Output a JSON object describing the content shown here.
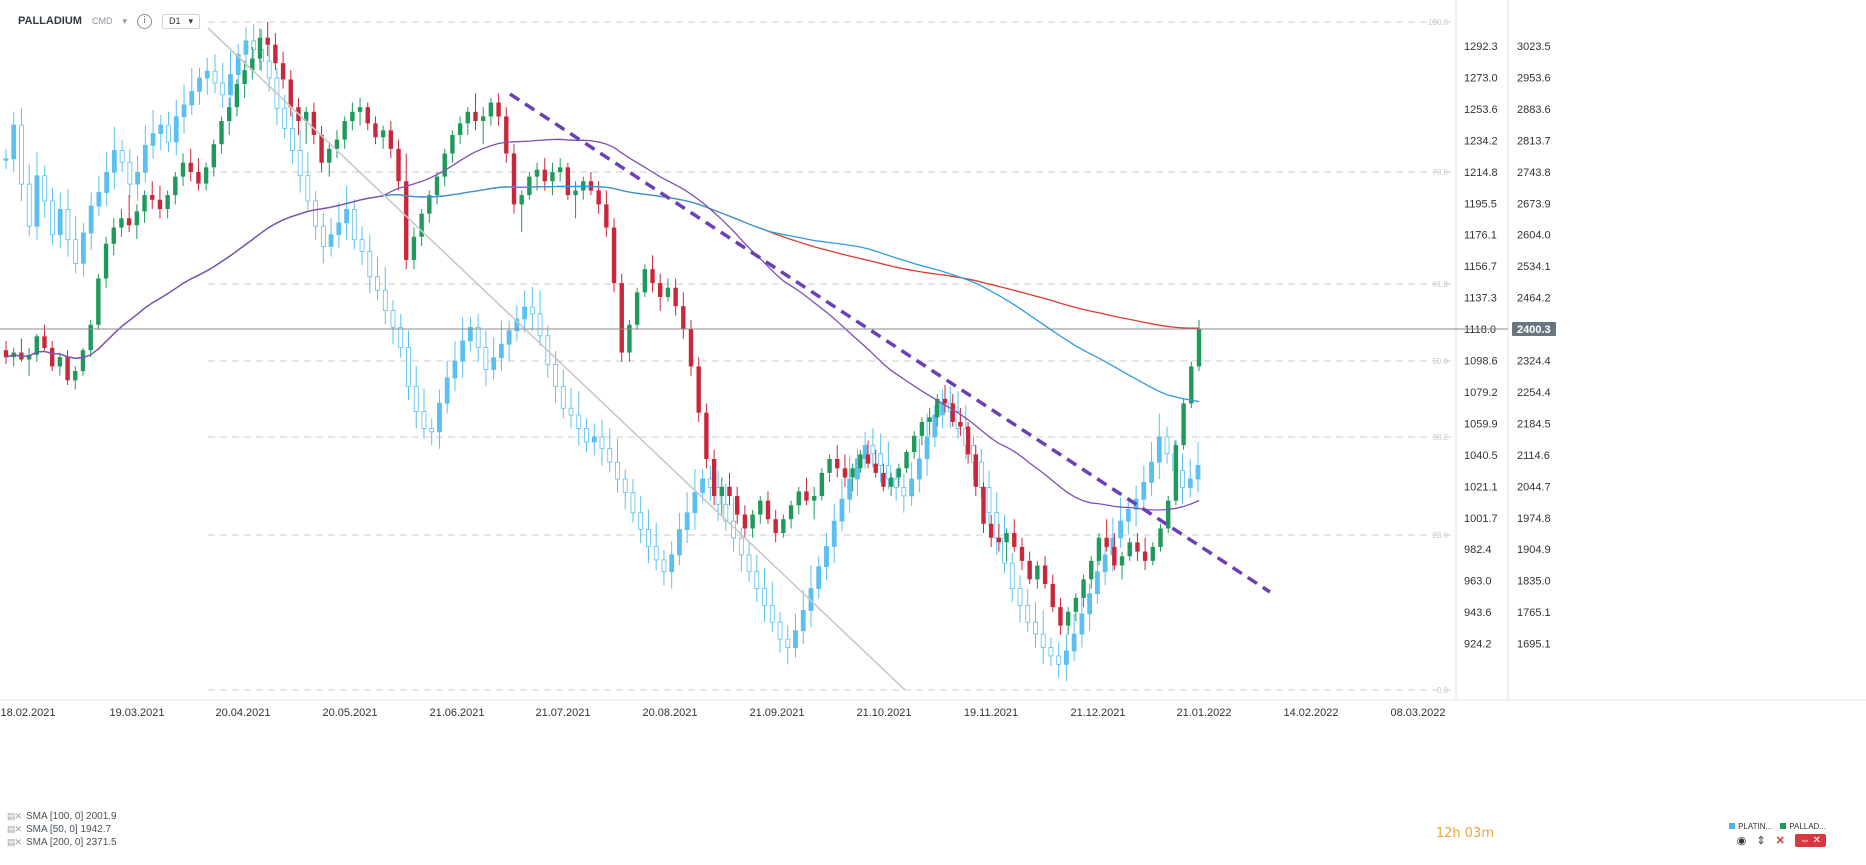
{
  "toolbar": {
    "symbol": "PALLADIUM",
    "source": "CMD",
    "info_icon": "info-icon",
    "interval": "D1"
  },
  "timer": {
    "hours": "12",
    "h_unit": "h",
    "minutes": "03",
    "m_unit": "m"
  },
  "symbols_legend": [
    {
      "label": "PLATIN...",
      "color": "#4fb3e8"
    },
    {
      "label": "PALLAD...",
      "color": "#1f9a5a"
    }
  ],
  "indicators": [
    {
      "label": "SMA [100, 0] 2001.9",
      "color": "#2f9be0"
    },
    {
      "label": "SMA [50, 0] 1942.7",
      "color": "#7e4fb8"
    },
    {
      "label": "SMA [200, 0] 2371.5",
      "color": "#e03a2e"
    }
  ],
  "colors": {
    "up": "#1f9a5a",
    "down": "#c8283a",
    "platinum": "#5bc0ef",
    "sma50": "#7e4fb8",
    "sma100": "#2f9be0",
    "sma200": "#e03a2e",
    "trendline": "#6b3fb6",
    "grid": "#d8d8d8",
    "current_line": "#888888"
  },
  "chart_data": {
    "type": "line",
    "title": "PALLADIUM",
    "xlabel": "",
    "ylabel": "",
    "x_labels": [
      "18.02.2021",
      "19.03.2021",
      "20.04.2021",
      "20.05.2021",
      "21.06.2021",
      "21.07.2021",
      "20.08.2021",
      "21.09.2021",
      "21.10.2021",
      "19.11.2021",
      "21.12.2021",
      "21.01.2022",
      "14.02.2022",
      "08.03.2022"
    ],
    "y_left_ticks": [
      "1292.3",
      "1273.0",
      "1253.6",
      "1234.2",
      "1214.8",
      "1195.5",
      "1176.1",
      "1156.7",
      "1137.3",
      "1118.0",
      "1098.6",
      "1079.2",
      "1059.9",
      "1040.5",
      "1021.1",
      "1001.7",
      "982.4",
      "963.0",
      "943.6",
      "924.2"
    ],
    "y_left_range": [
      904.8,
      1301.2
    ],
    "y_right_ticks": [
      "3023.5",
      "2953.6",
      "2883.6",
      "2813.7",
      "2743.8",
      "2673.9",
      "2604.0",
      "2534.1",
      "2464.2",
      "2400.3",
      "2324.4",
      "2254.4",
      "2184.5",
      "2114.6",
      "2044.7",
      "1974.8",
      "1904.9",
      "1835.0",
      "1765.1",
      "1695.1"
    ],
    "current_price": "2400.3",
    "fibonacci_levels": [
      "100.0",
      "78.6",
      "61.8",
      "50.0",
      "38.2",
      "23.6",
      "0.0"
    ],
    "fibonacci_range": [
      1621.0,
      3064.0
    ],
    "series": [
      {
        "name": "PLATIN...",
        "role": "platinum-right-axis"
      },
      {
        "name": "PALLAD...",
        "role": "palladium-left-axis"
      },
      {
        "name": "SMA [100, 0] 2001.9"
      },
      {
        "name": "SMA [50, 0] 1942.7"
      },
      {
        "name": "SMA [200, 0] 2371.5"
      }
    ],
    "palladium_candles": [
      [
        2355,
        2375,
        2325,
        2340
      ],
      [
        2340,
        2360,
        2320,
        2350
      ],
      [
        2350,
        2380,
        2330,
        2335
      ],
      [
        2335,
        2360,
        2300,
        2345
      ],
      [
        2345,
        2390,
        2330,
        2385
      ],
      [
        2385,
        2410,
        2355,
        2360
      ],
      [
        2360,
        2375,
        2310,
        2320
      ],
      [
        2320,
        2350,
        2300,
        2340
      ],
      [
        2340,
        2355,
        2280,
        2290
      ],
      [
        2290,
        2320,
        2270,
        2310
      ],
      [
        2310,
        2360,
        2300,
        2355
      ],
      [
        2355,
        2420,
        2340,
        2410
      ],
      [
        2410,
        2520,
        2400,
        2510
      ],
      [
        2510,
        2600,
        2490,
        2585
      ],
      [
        2585,
        2640,
        2560,
        2620
      ],
      [
        2620,
        2660,
        2600,
        2640
      ],
      [
        2640,
        2690,
        2610,
        2625
      ],
      [
        2625,
        2670,
        2595,
        2655
      ],
      [
        2655,
        2700,
        2630,
        2690
      ],
      [
        2690,
        2720,
        2660,
        2680
      ],
      [
        2680,
        2710,
        2640,
        2660
      ],
      [
        2660,
        2700,
        2640,
        2690
      ],
      [
        2690,
        2740,
        2670,
        2730
      ],
      [
        2730,
        2780,
        2710,
        2760
      ],
      [
        2760,
        2790,
        2720,
        2740
      ],
      [
        2740,
        2770,
        2700,
        2715
      ],
      [
        2715,
        2760,
        2700,
        2750
      ],
      [
        2750,
        2810,
        2730,
        2800
      ],
      [
        2800,
        2860,
        2780,
        2850
      ],
      [
        2850,
        2900,
        2820,
        2880
      ],
      [
        2880,
        2940,
        2860,
        2930
      ],
      [
        2930,
        2980,
        2900,
        2960
      ],
      [
        2960,
        3010,
        2940,
        2985
      ],
      [
        2985,
        3050,
        2960,
        3030
      ],
      [
        3030,
        3064,
        2990,
        3015
      ],
      [
        3015,
        3040,
        2960,
        2975
      ],
      [
        2975,
        3000,
        2920,
        2940
      ],
      [
        2940,
        2960,
        2860,
        2880
      ],
      [
        2880,
        2900,
        2820,
        2850
      ],
      [
        2850,
        2880,
        2800,
        2870
      ],
      [
        2870,
        2890,
        2800,
        2820
      ],
      [
        2820,
        2840,
        2740,
        2760
      ],
      [
        2760,
        2800,
        2730,
        2790
      ],
      [
        2790,
        2830,
        2770,
        2810
      ],
      [
        2810,
        2860,
        2790,
        2850
      ],
      [
        2850,
        2890,
        2830,
        2870
      ],
      [
        2870,
        2900,
        2840,
        2880
      ],
      [
        2880,
        2890,
        2830,
        2845
      ],
      [
        2845,
        2860,
        2800,
        2815
      ],
      [
        2815,
        2840,
        2790,
        2830
      ],
      [
        2830,
        2850,
        2770,
        2790
      ],
      [
        2790,
        2810,
        2700,
        2720
      ],
      [
        2720,
        2780,
        2530,
        2550
      ],
      [
        2550,
        2620,
        2530,
        2600
      ],
      [
        2600,
        2660,
        2580,
        2650
      ],
      [
        2650,
        2700,
        2630,
        2690
      ],
      [
        2690,
        2740,
        2670,
        2730
      ],
      [
        2730,
        2790,
        2710,
        2780
      ],
      [
        2780,
        2830,
        2760,
        2820
      ],
      [
        2820,
        2860,
        2800,
        2845
      ],
      [
        2845,
        2880,
        2820,
        2870
      ],
      [
        2870,
        2910,
        2830,
        2850
      ],
      [
        2850,
        2880,
        2800,
        2860
      ],
      [
        2860,
        2900,
        2840,
        2890
      ],
      [
        2890,
        2910,
        2840,
        2860
      ],
      [
        2860,
        2880,
        2760,
        2780
      ],
      [
        2780,
        2800,
        2650,
        2670
      ],
      [
        2670,
        2700,
        2610,
        2690
      ],
      [
        2690,
        2740,
        2680,
        2730
      ],
      [
        2730,
        2760,
        2700,
        2745
      ],
      [
        2745,
        2770,
        2700,
        2720
      ],
      [
        2720,
        2760,
        2690,
        2740
      ],
      [
        2740,
        2770,
        2720,
        2750
      ],
      [
        2750,
        2760,
        2680,
        2690
      ],
      [
        2690,
        2720,
        2640,
        2700
      ],
      [
        2700,
        2730,
        2680,
        2720
      ],
      [
        2720,
        2740,
        2690,
        2700
      ],
      [
        2700,
        2720,
        2650,
        2670
      ],
      [
        2670,
        2700,
        2600,
        2620
      ],
      [
        2620,
        2640,
        2480,
        2500
      ],
      [
        2500,
        2520,
        2330,
        2350
      ],
      [
        2350,
        2420,
        2330,
        2410
      ],
      [
        2410,
        2490,
        2400,
        2480
      ],
      [
        2480,
        2540,
        2470,
        2530
      ],
      [
        2530,
        2560,
        2480,
        2500
      ],
      [
        2500,
        2520,
        2440,
        2470
      ],
      [
        2470,
        2510,
        2460,
        2490
      ],
      [
        2490,
        2510,
        2430,
        2450
      ],
      [
        2450,
        2480,
        2380,
        2400
      ],
      [
        2400,
        2420,
        2300,
        2320
      ],
      [
        2320,
        2340,
        2200,
        2220
      ],
      [
        2220,
        2240,
        2100,
        2120
      ],
      [
        2120,
        2140,
        2020,
        2040
      ],
      [
        2040,
        2080,
        2000,
        2060
      ],
      [
        2060,
        2090,
        2020,
        2040
      ],
      [
        2040,
        2060,
        1980,
        2000
      ],
      [
        2000,
        2020,
        1950,
        1970
      ],
      [
        1970,
        2010,
        1950,
        2000
      ],
      [
        2000,
        2040,
        1980,
        2030
      ],
      [
        2030,
        2050,
        1980,
        1990
      ],
      [
        1990,
        2010,
        1940,
        1960
      ],
      [
        1960,
        2000,
        1950,
        1990
      ],
      [
        1990,
        2030,
        1970,
        2020
      ],
      [
        2020,
        2060,
        2000,
        2050
      ],
      [
        2050,
        2080,
        2020,
        2030
      ],
      [
        2030,
        2060,
        1990,
        2040
      ],
      [
        2040,
        2100,
        2030,
        2090
      ],
      [
        2090,
        2130,
        2070,
        2120
      ],
      [
        2120,
        2150,
        2080,
        2100
      ],
      [
        2100,
        2130,
        2060,
        2080
      ],
      [
        2080,
        2110,
        2050,
        2100
      ],
      [
        2100,
        2140,
        2090,
        2130
      ],
      [
        2130,
        2160,
        2100,
        2110
      ],
      [
        2110,
        2140,
        2080,
        2090
      ],
      [
        2090,
        2110,
        2050,
        2060
      ],
      [
        2060,
        2090,
        2040,
        2080
      ],
      [
        2080,
        2110,
        2060,
        2100
      ],
      [
        2100,
        2140,
        2090,
        2135
      ],
      [
        2135,
        2180,
        2120,
        2170
      ],
      [
        2170,
        2210,
        2150,
        2200
      ],
      [
        2200,
        2230,
        2170,
        2210
      ],
      [
        2210,
        2260,
        2190,
        2250
      ],
      [
        2250,
        2280,
        2220,
        2240
      ],
      [
        2240,
        2260,
        2190,
        2200
      ],
      [
        2200,
        2230,
        2170,
        2190
      ],
      [
        2190,
        2200,
        2110,
        2130
      ],
      [
        2130,
        2150,
        2040,
        2060
      ],
      [
        2060,
        2070,
        1960,
        1980
      ],
      [
        1980,
        2000,
        1930,
        1950
      ],
      [
        1950,
        1980,
        1920,
        1940
      ],
      [
        1940,
        1970,
        1900,
        1960
      ],
      [
        1960,
        1990,
        1920,
        1930
      ],
      [
        1930,
        1950,
        1880,
        1900
      ],
      [
        1900,
        1920,
        1850,
        1860
      ],
      [
        1860,
        1900,
        1840,
        1890
      ],
      [
        1890,
        1910,
        1840,
        1850
      ],
      [
        1850,
        1870,
        1790,
        1800
      ],
      [
        1800,
        1820,
        1740,
        1760
      ],
      [
        1760,
        1800,
        1740,
        1790
      ],
      [
        1790,
        1830,
        1770,
        1820
      ],
      [
        1820,
        1870,
        1800,
        1860
      ],
      [
        1860,
        1910,
        1840,
        1900
      ],
      [
        1900,
        1960,
        1890,
        1950
      ],
      [
        1950,
        1990,
        1920,
        1930
      ],
      [
        1930,
        1960,
        1880,
        1890
      ],
      [
        1890,
        1920,
        1860,
        1910
      ],
      [
        1910,
        1950,
        1900,
        1940
      ],
      [
        1940,
        1960,
        1900,
        1920
      ],
      [
        1920,
        1950,
        1880,
        1900
      ],
      [
        1900,
        1940,
        1890,
        1930
      ],
      [
        1930,
        1980,
        1920,
        1970
      ],
      [
        1970,
        2040,
        1960,
        2030
      ],
      [
        2030,
        2160,
        2020,
        2150
      ],
      [
        2150,
        2250,
        2140,
        2240
      ],
      [
        2240,
        2330,
        2230,
        2320
      ],
      [
        2320,
        2420,
        2310,
        2400
      ]
    ],
    "platinum_closes": [
      1220,
      1240,
      1205,
      1180,
      1210,
      1195,
      1175,
      1190,
      1172,
      1158,
      1176,
      1192,
      1200,
      1212,
      1225,
      1218,
      1205,
      1212,
      1228,
      1235,
      1240,
      1230,
      1245,
      1252,
      1260,
      1268,
      1272,
      1265,
      1258,
      1270,
      1282,
      1290,
      1285,
      1278,
      1268,
      1250,
      1238,
      1225,
      1210,
      1195,
      1180,
      1168,
      1175,
      1182,
      1190,
      1172,
      1165,
      1150,
      1142,
      1130,
      1120,
      1108,
      1085,
      1070,
      1060,
      1058,
      1075,
      1090,
      1100,
      1112,
      1120,
      1108,
      1095,
      1102,
      1110,
      1118,
      1125,
      1132,
      1128,
      1115,
      1098,
      1085,
      1072,
      1068,
      1060,
      1052,
      1055,
      1048,
      1040,
      1030,
      1022,
      1010,
      1000,
      990,
      982,
      975,
      985,
      1000,
      1010,
      1022,
      1030,
      1025,
      1015,
      1005,
      995,
      985,
      975,
      965,
      955,
      945,
      935,
      930,
      940,
      952,
      965,
      978,
      990,
      1005,
      1018,
      1030,
      1042,
      1050,
      1045,
      1038,
      1030,
      1025,
      1020,
      1030,
      1042,
      1055,
      1068,
      1075,
      1070,
      1060,
      1050,
      1040,
      1025,
      1010,
      995,
      980,
      965,
      955,
      945,
      938,
      930,
      925,
      920,
      928,
      938,
      950,
      962,
      975,
      985,
      995,
      1005,
      1012,
      1018,
      1028,
      1040,
      1055,
      1045,
      1035,
      1025,
      1030,
      1038
    ]
  }
}
